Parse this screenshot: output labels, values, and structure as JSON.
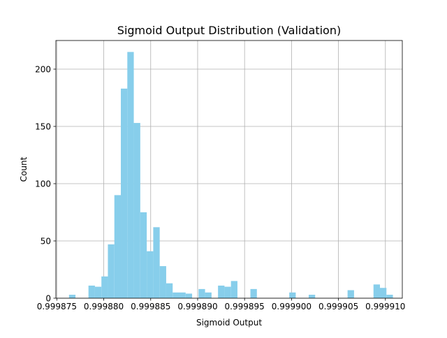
{
  "chart_data": {
    "type": "bar",
    "title": "Sigmoid Output Distribution (Validation)",
    "xlabel": "Sigmoid Output",
    "ylabel": "Count",
    "xlim": [
      0.9998749,
      0.9999118
    ],
    "ylim": [
      0,
      225
    ],
    "grid": true,
    "bar_color": "#87CEEB",
    "x_ticks": [
      {
        "value": 0.999875,
        "label": "0.999875"
      },
      {
        "value": 0.99988,
        "label": "0.999880"
      },
      {
        "value": 0.999885,
        "label": "0.999885"
      },
      {
        "value": 0.99989,
        "label": "0.999890"
      },
      {
        "value": 0.999895,
        "label": "0.999895"
      },
      {
        "value": 0.9999,
        "label": "0.999900"
      },
      {
        "value": 0.999905,
        "label": "0.999905"
      },
      {
        "value": 0.99991,
        "label": "0.999910"
      }
    ],
    "y_ticks": [
      {
        "value": 0,
        "label": "0"
      },
      {
        "value": 50,
        "label": "50"
      },
      {
        "value": 100,
        "label": "100"
      },
      {
        "value": 150,
        "label": "150"
      },
      {
        "value": 200,
        "label": "200"
      }
    ],
    "bins": [
      {
        "x0": 0.9998763,
        "x1": 0.99987699,
        "count": 3
      },
      {
        "x0": 0.99987837,
        "x1": 0.99987906,
        "count": 11
      },
      {
        "x0": 0.99987906,
        "x1": 0.99987975,
        "count": 10
      },
      {
        "x0": 0.99987975,
        "x1": 0.99988044,
        "count": 19
      },
      {
        "x0": 0.99988044,
        "x1": 0.99988113,
        "count": 47
      },
      {
        "x0": 0.99988113,
        "x1": 0.99988182,
        "count": 90
      },
      {
        "x0": 0.99988182,
        "x1": 0.99988251,
        "count": 183
      },
      {
        "x0": 0.99988251,
        "x1": 0.9998832,
        "count": 215
      },
      {
        "x0": 0.9998832,
        "x1": 0.99988389,
        "count": 153
      },
      {
        "x0": 0.99988389,
        "x1": 0.99988458,
        "count": 75
      },
      {
        "x0": 0.99988458,
        "x1": 0.99988527,
        "count": 41
      },
      {
        "x0": 0.99988527,
        "x1": 0.99988596,
        "count": 62
      },
      {
        "x0": 0.99988596,
        "x1": 0.99988665,
        "count": 28
      },
      {
        "x0": 0.99988665,
        "x1": 0.99988734,
        "count": 13
      },
      {
        "x0": 0.99988734,
        "x1": 0.99988803,
        "count": 5
      },
      {
        "x0": 0.99988803,
        "x1": 0.99988872,
        "count": 5
      },
      {
        "x0": 0.99988872,
        "x1": 0.99988941,
        "count": 4
      },
      {
        "x0": 0.9998901,
        "x1": 0.99989079,
        "count": 8
      },
      {
        "x0": 0.99989079,
        "x1": 0.99989148,
        "count": 5
      },
      {
        "x0": 0.99989217,
        "x1": 0.99989286,
        "count": 11
      },
      {
        "x0": 0.99989286,
        "x1": 0.99989355,
        "count": 10
      },
      {
        "x0": 0.99989355,
        "x1": 0.99989424,
        "count": 15
      },
      {
        "x0": 0.99989562,
        "x1": 0.99989631,
        "count": 8
      },
      {
        "x0": 0.99989976,
        "x1": 0.99990045,
        "count": 5
      },
      {
        "x0": 0.99990183,
        "x1": 0.99990252,
        "count": 3
      },
      {
        "x0": 0.99990597,
        "x1": 0.99990666,
        "count": 7
      },
      {
        "x0": 0.99990873,
        "x1": 0.99990942,
        "count": 12
      },
      {
        "x0": 0.99990942,
        "x1": 0.99991011,
        "count": 9
      },
      {
        "x0": 0.99991011,
        "x1": 0.9999108,
        "count": 3
      }
    ]
  }
}
